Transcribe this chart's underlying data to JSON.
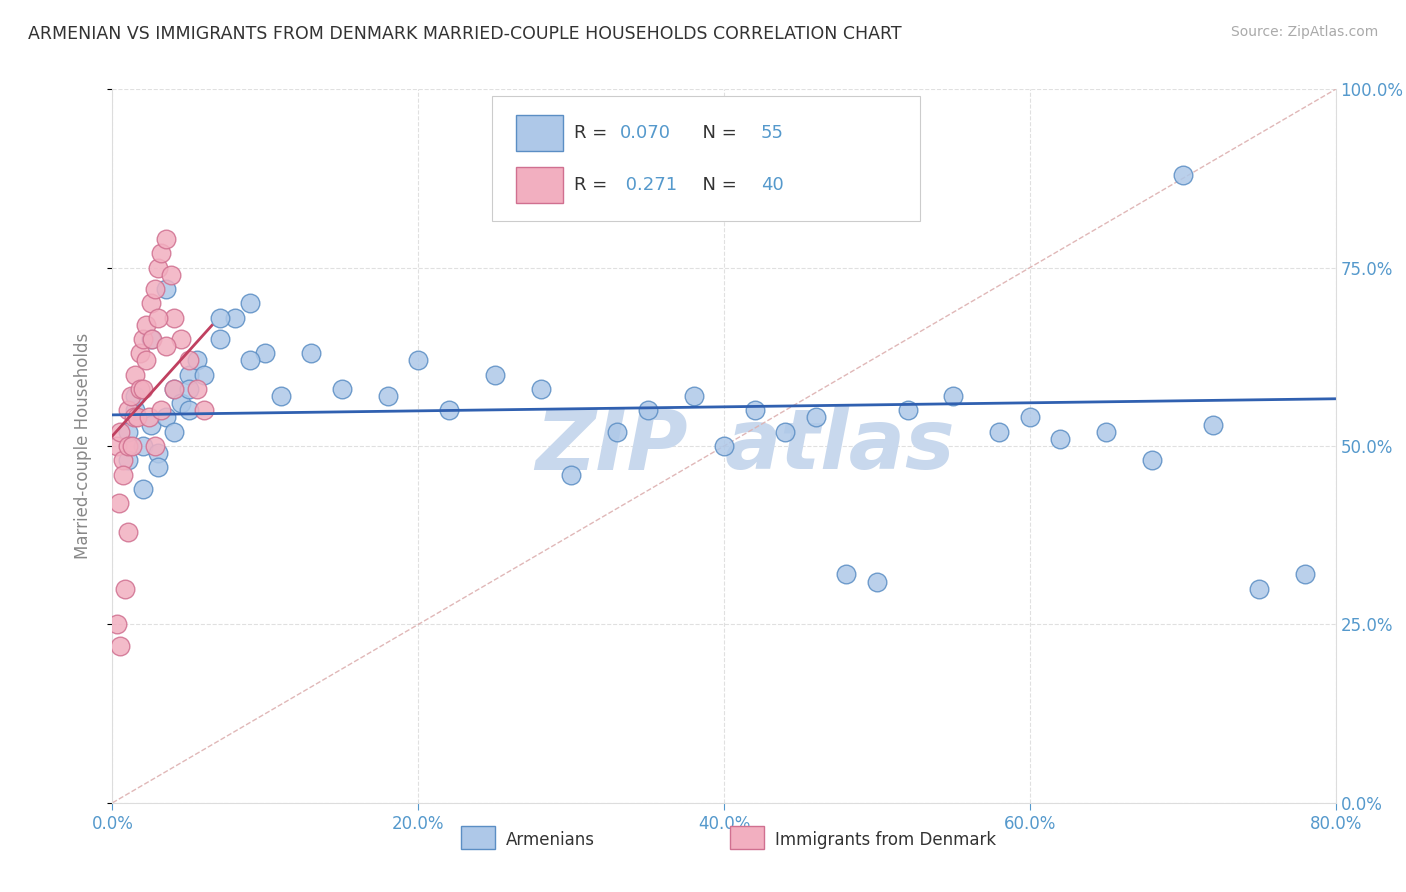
{
  "title": "ARMENIAN VS IMMIGRANTS FROM DENMARK MARRIED-COUPLE HOUSEHOLDS CORRELATION CHART",
  "source": "Source: ZipAtlas.com",
  "xlim": [
    0.0,
    80.0
  ],
  "ylim": [
    0.0,
    100.0
  ],
  "xlabel_vals": [
    0.0,
    20.0,
    40.0,
    60.0,
    80.0
  ],
  "ylabel_vals": [
    0.0,
    25.0,
    50.0,
    75.0,
    100.0
  ],
  "ylabel": "Married-couple Households",
  "legend_label1": "Armenians",
  "legend_label2": "Immigrants from Denmark",
  "R1": 0.07,
  "N1": 55,
  "R2": 0.271,
  "N2": 40,
  "color1": "#aec8e8",
  "color2": "#f2afc0",
  "edge_color1": "#5b8ec4",
  "edge_color2": "#d07090",
  "line_color1": "#3060b0",
  "line_color2": "#c04060",
  "ref_line_color": "#ddb0b0",
  "watermark_color": "#c8d8ed",
  "background_color": "#ffffff",
  "armenians_x": [
    1.0,
    1.5,
    2.0,
    2.5,
    3.0,
    3.5,
    4.0,
    4.5,
    5.0,
    5.5,
    1.0,
    2.0,
    3.0,
    4.0,
    5.0,
    6.0,
    7.0,
    8.0,
    9.0,
    10.0,
    1.5,
    2.5,
    3.5,
    5.0,
    7.0,
    9.0,
    11.0,
    13.0,
    15.0,
    18.0,
    20.0,
    22.0,
    25.0,
    28.0,
    30.0,
    33.0,
    35.0,
    38.0,
    40.0,
    42.0,
    44.0,
    46.0,
    48.0,
    50.0,
    52.0,
    55.0,
    58.0,
    60.0,
    62.0,
    65.0,
    68.0,
    70.0,
    72.0,
    75.0,
    78.0
  ],
  "armenians_y": [
    52.0,
    55.0,
    50.0,
    53.0,
    49.0,
    54.0,
    58.0,
    56.0,
    60.0,
    62.0,
    48.0,
    44.0,
    47.0,
    52.0,
    55.0,
    60.0,
    65.0,
    68.0,
    70.0,
    63.0,
    57.0,
    65.0,
    72.0,
    58.0,
    68.0,
    62.0,
    57.0,
    63.0,
    58.0,
    57.0,
    62.0,
    55.0,
    60.0,
    58.0,
    46.0,
    52.0,
    55.0,
    57.0,
    50.0,
    55.0,
    52.0,
    54.0,
    32.0,
    31.0,
    55.0,
    57.0,
    52.0,
    54.0,
    51.0,
    52.0,
    48.0,
    88.0,
    53.0,
    30.0,
    32.0
  ],
  "denmark_x": [
    0.3,
    0.5,
    0.7,
    1.0,
    1.2,
    1.5,
    1.8,
    2.0,
    2.2,
    2.5,
    2.8,
    3.0,
    3.2,
    3.5,
    3.8,
    4.0,
    4.5,
    5.0,
    5.5,
    6.0,
    0.4,
    0.7,
    1.0,
    1.4,
    1.8,
    2.2,
    2.6,
    3.0,
    3.5,
    4.0,
    0.3,
    0.5,
    0.8,
    1.0,
    1.3,
    1.6,
    2.0,
    2.4,
    2.8,
    3.2
  ],
  "denmark_y": [
    50.0,
    52.0,
    48.0,
    55.0,
    57.0,
    60.0,
    63.0,
    65.0,
    67.0,
    70.0,
    72.0,
    75.0,
    77.0,
    79.0,
    74.0,
    68.0,
    65.0,
    62.0,
    58.0,
    55.0,
    42.0,
    46.0,
    50.0,
    54.0,
    58.0,
    62.0,
    65.0,
    68.0,
    64.0,
    58.0,
    25.0,
    22.0,
    30.0,
    38.0,
    50.0,
    54.0,
    58.0,
    54.0,
    50.0,
    55.0
  ]
}
